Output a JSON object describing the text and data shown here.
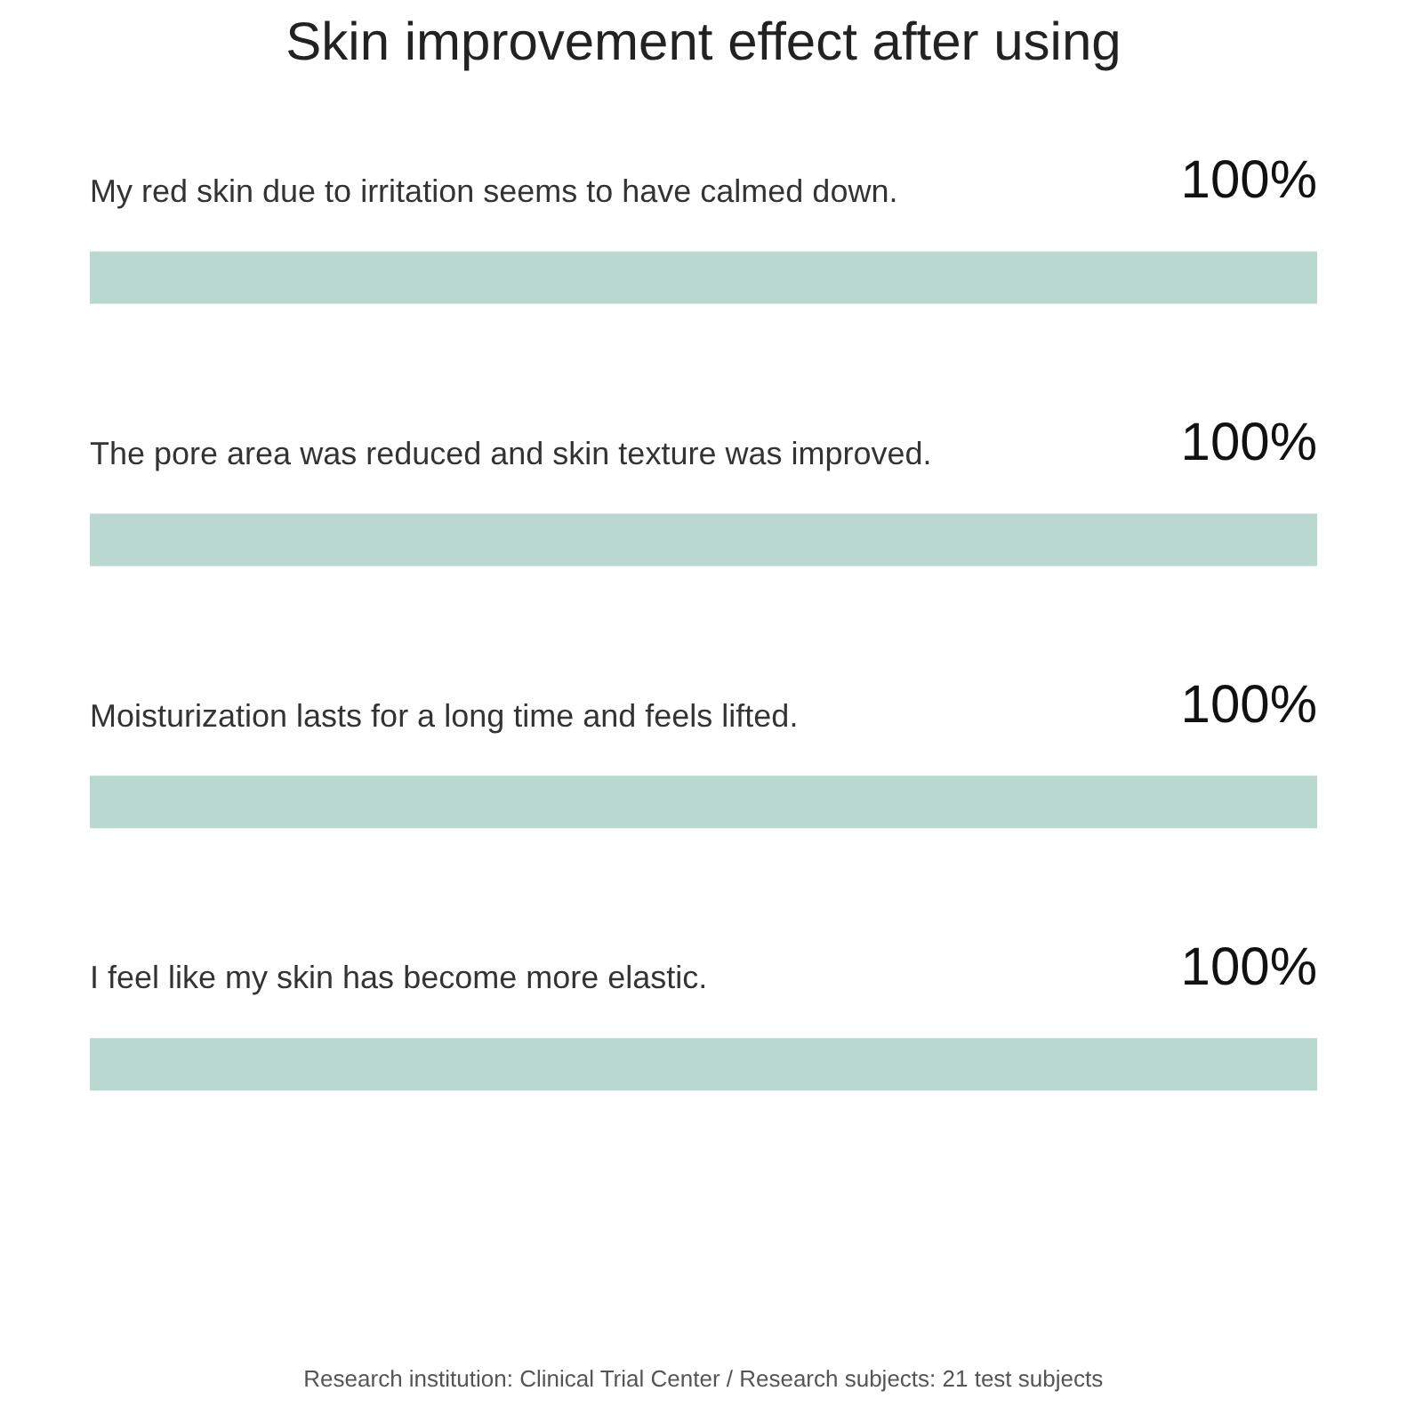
{
  "chart_data": {
    "type": "bar",
    "orientation": "horizontal",
    "title": "Skin improvement effect after using",
    "categories": [
      "My red skin due to irritation seems to have calmed down.",
      "The pore area was reduced and skin texture was improved.",
      "Moisturization lasts for a long time and feels lifted.",
      "I feel like my skin has become more elastic."
    ],
    "values": [
      100,
      100,
      100,
      100
    ],
    "value_labels": [
      "100%",
      "100%",
      "100%",
      "100%"
    ],
    "color": "#b9d8d0",
    "tick_labels": false,
    "grid": false,
    "annotations": [
      "Research institution: Clinical Trial Center / Research subjects: 21 test subjects"
    ]
  }
}
